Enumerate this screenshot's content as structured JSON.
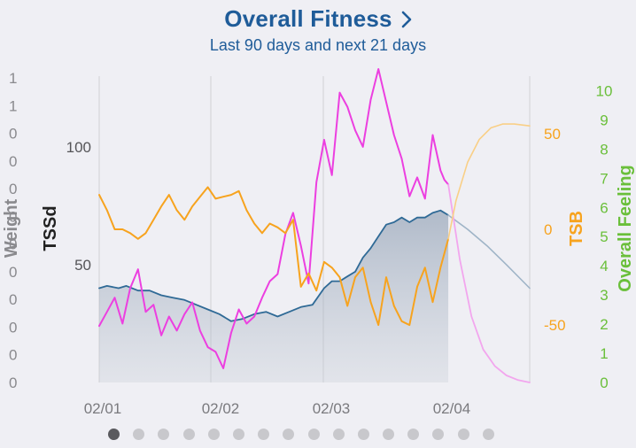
{
  "header": {
    "title": "Overall Fitness",
    "subtitle": "Last 90 days and next 21 days"
  },
  "colors": {
    "title": "#1f5c99",
    "fitness": "#2f6a96",
    "fatigue": "#ec3fe0",
    "form": "#f7a31e",
    "weight_axis": "#8a8a8e",
    "tssd_axis": "#333333",
    "feeling_axis": "#6abf3a",
    "grid": "#d0d0d4"
  },
  "pager": {
    "count": 16,
    "active": 0
  },
  "chart_data": {
    "type": "line",
    "title": "Overall Fitness",
    "subtitle": "Last 90 days and next 21 days",
    "x_ticks": [
      "02/01",
      "02/02",
      "02/03",
      "02/04"
    ],
    "axes": {
      "weight": {
        "label": "Weight",
        "ticks": [
          "1",
          "1",
          "0",
          "0",
          "0",
          "0",
          "0",
          "0",
          "0",
          "0",
          "0",
          "0"
        ]
      },
      "tssd": {
        "label": "TSSd",
        "ticks": [
          "100",
          "50"
        ],
        "ylim": [
          0,
          130
        ]
      },
      "tsb": {
        "label": "TSB",
        "ticks": [
          "50",
          "0",
          "-50"
        ],
        "ylim": [
          -80,
          80
        ]
      },
      "feeling": {
        "label": "Overall Feeling",
        "ticks": [
          "10",
          "9",
          "8",
          "7",
          "6",
          "5",
          "4",
          "3",
          "2",
          "1",
          "0"
        ],
        "ylim": [
          0,
          10.5
        ]
      }
    },
    "x_range": [
      0,
      111
    ],
    "today": 90,
    "series": [
      {
        "key": "fitness",
        "axis": "tssd",
        "filled": true,
        "x": [
          0,
          2,
          5,
          7,
          10,
          13,
          16,
          19,
          22,
          25,
          28,
          31,
          34,
          37,
          40,
          43,
          46,
          49,
          52,
          55,
          58,
          60,
          62,
          64,
          66,
          68,
          70,
          72,
          74,
          76,
          78,
          80,
          82,
          84,
          86,
          88,
          90
        ],
        "values": [
          40,
          41,
          40,
          41,
          39,
          39,
          37,
          36,
          35,
          33,
          31,
          29,
          26,
          27,
          29,
          30,
          28,
          30,
          32,
          33,
          40,
          43,
          43,
          45,
          47,
          53,
          57,
          62,
          67,
          68,
          70,
          68,
          70,
          70,
          72,
          73,
          71
        ]
      },
      {
        "key": "fitness_projection",
        "axis": "tssd",
        "x": [
          90,
          95,
          100,
          105,
          111
        ],
        "values": [
          71,
          65,
          58,
          50,
          40
        ]
      },
      {
        "key": "fatigue",
        "axis": "tssd",
        "x": [
          0,
          2,
          4,
          6,
          8,
          10,
          12,
          14,
          16,
          18,
          20,
          22,
          24,
          26,
          28,
          30,
          32,
          34,
          36,
          38,
          40,
          42,
          44,
          46,
          48,
          50,
          52,
          54,
          56,
          58,
          60,
          62,
          64,
          66,
          68,
          70,
          72,
          74,
          76,
          78,
          80,
          82,
          84,
          86,
          88,
          89,
          90
        ],
        "values": [
          24,
          30,
          36,
          25,
          40,
          48,
          30,
          33,
          20,
          28,
          22,
          29,
          34,
          22,
          15,
          13,
          6,
          21,
          31,
          25,
          28,
          36,
          43,
          46,
          63,
          72,
          58,
          42,
          85,
          103,
          88,
          123,
          117,
          107,
          100,
          120,
          133,
          119,
          105,
          95,
          79,
          87,
          78,
          105,
          90,
          86,
          84
        ]
      },
      {
        "key": "fatigue_projection",
        "axis": "tssd",
        "x": [
          90,
          93,
          96,
          99,
          102,
          105,
          108,
          111
        ],
        "values": [
          84,
          52,
          28,
          14,
          7,
          3,
          1,
          0
        ]
      },
      {
        "key": "form",
        "axis": "tsb",
        "x": [
          0,
          2,
          4,
          6,
          8,
          10,
          12,
          14,
          16,
          18,
          20,
          22,
          24,
          26,
          28,
          30,
          32,
          34,
          36,
          38,
          40,
          42,
          44,
          46,
          48,
          50,
          52,
          54,
          56,
          58,
          60,
          62,
          64,
          66,
          68,
          70,
          72,
          74,
          76,
          78,
          80,
          82,
          84,
          86,
          88,
          90
        ],
        "values": [
          18,
          10,
          0,
          0,
          -2,
          -5,
          -2,
          5,
          12,
          18,
          10,
          5,
          12,
          17,
          22,
          16,
          17,
          18,
          20,
          10,
          3,
          -2,
          3,
          1,
          -2,
          5,
          -30,
          -23,
          -32,
          -17,
          -20,
          -25,
          -40,
          -25,
          -20,
          -38,
          -50,
          -25,
          -40,
          -48,
          -50,
          -30,
          -20,
          -38,
          -20,
          -5
        ]
      },
      {
        "key": "form_projection",
        "axis": "tsb",
        "x": [
          90,
          92,
          95,
          98,
          101,
          104,
          107,
          111
        ],
        "values": [
          -5,
          15,
          35,
          47,
          53,
          55,
          55,
          54
        ]
      }
    ]
  }
}
